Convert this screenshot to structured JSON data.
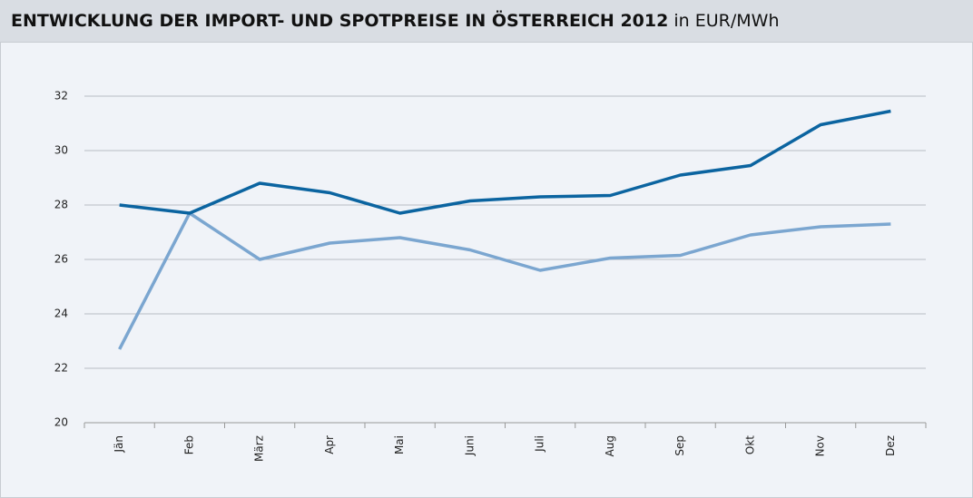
{
  "chart_data": {
    "type": "line",
    "title": "ENTWICKLUNG DER IMPORT- UND SPOTPREISE IN ÖSTERREICH 2012",
    "subtitle": "in EUR/MWh",
    "categories": [
      "Jän",
      "Feb",
      "März",
      "Apr",
      "Mai",
      "Juni",
      "Juli",
      "Aug",
      "Sep",
      "Okt",
      "Nov",
      "Dez"
    ],
    "series": [
      {
        "color": "#0b64a0",
        "values": [
          28.0,
          27.7,
          28.8,
          28.45,
          27.7,
          28.15,
          28.3,
          28.35,
          29.1,
          29.45,
          30.95,
          31.45
        ]
      },
      {
        "color": "#7ba6d0",
        "values": [
          22.7,
          27.7,
          26.0,
          26.6,
          26.8,
          26.35,
          25.6,
          26.05,
          26.15,
          26.9,
          27.2,
          27.3
        ]
      }
    ],
    "ylim": [
      20,
      32
    ],
    "yticks": [
      20,
      22,
      24,
      26,
      28,
      30,
      32
    ],
    "grid": true
  }
}
